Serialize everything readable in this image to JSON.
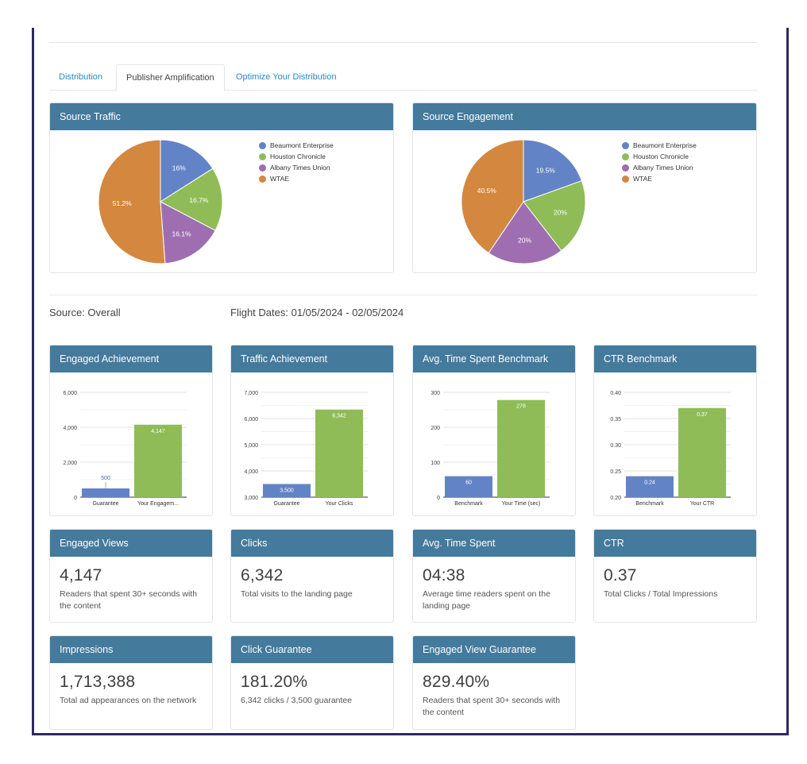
{
  "tabs": [
    {
      "label": "Distribution",
      "active": false
    },
    {
      "label": "Publisher Amplification",
      "active": true
    },
    {
      "label": "Optimize Your Distribution",
      "active": false
    }
  ],
  "colors": {
    "header": "#447a9c",
    "blue": "#6283c5",
    "green": "#8fbc57",
    "purple": "#9e6eb0",
    "orange": "#d4873f",
    "link": "#2b8ac6",
    "frame": "#2e2a5e"
  },
  "source_label": "Source: Overall",
  "flight_dates": "Flight Dates: 01/05/2024 - 02/05/2024",
  "chart_data": [
    {
      "type": "pie",
      "title": "Source Traffic",
      "categories": [
        "Beaumont Enterprise",
        "Houston Chronicle",
        "Albany Times Union",
        "WTAE"
      ],
      "values": [
        16,
        16.7,
        16.1,
        51.2
      ],
      "labels": [
        "16%",
        "16.7%",
        "16.1%",
        "51.2%"
      ],
      "legend": "right"
    },
    {
      "type": "pie",
      "title": "Source Engagement",
      "categories": [
        "Beaumont Enterprise",
        "Houston Chronicle",
        "Albany Times Union",
        "WTAE"
      ],
      "values": [
        19.5,
        20,
        20,
        40.5
      ],
      "labels": [
        "19.5%",
        "20%",
        "20%",
        "40.5%"
      ],
      "legend": "right"
    },
    {
      "type": "bar",
      "title": "Engaged Achievement",
      "categories": [
        "Guarantee",
        "Your Engagem..."
      ],
      "values": [
        500,
        4147
      ],
      "value_labels": [
        "500",
        "4,147"
      ],
      "ylim": [
        0,
        6000
      ],
      "yticks": [
        0,
        2000,
        4000,
        6000
      ],
      "ytick_labels": [
        "0",
        "2,000",
        "4,000",
        "6,000"
      ],
      "grid": true
    },
    {
      "type": "bar",
      "title": "Traffic Achievement",
      "categories": [
        "Guarantee",
        "Your Clicks"
      ],
      "values": [
        3500,
        6342
      ],
      "value_labels": [
        "3,500",
        "6,342"
      ],
      "ylim": [
        3000,
        7000
      ],
      "yticks": [
        3000,
        4000,
        5000,
        6000,
        7000
      ],
      "ytick_labels": [
        "3,000",
        "4,000",
        "5,000",
        "6,000",
        "7,000"
      ],
      "grid": true
    },
    {
      "type": "bar",
      "title": "Avg. Time Spent Benchmark",
      "categories": [
        "Benchmark",
        "Your Time (sec)"
      ],
      "values": [
        60,
        278
      ],
      "value_labels": [
        "60",
        "278"
      ],
      "ylim": [
        0,
        300
      ],
      "yticks": [
        0,
        100,
        200,
        300
      ],
      "ytick_labels": [
        "0",
        "100",
        "200",
        "300"
      ],
      "grid": true
    },
    {
      "type": "bar",
      "title": "CTR Benchmark",
      "categories": [
        "Benchmark",
        "Your CTR"
      ],
      "values": [
        0.24,
        0.37
      ],
      "value_labels": [
        "0.24",
        "0.37"
      ],
      "ylim": [
        0.2,
        0.4
      ],
      "yticks": [
        0.2,
        0.25,
        0.3,
        0.35,
        0.4
      ],
      "ytick_labels": [
        "0.20",
        "0.25",
        "0.30",
        "0.35",
        "0.40"
      ],
      "grid": true
    }
  ],
  "kpis": [
    {
      "title": "Engaged Views",
      "value": "4,147",
      "desc": "Readers that spent 30+ seconds with the content"
    },
    {
      "title": "Clicks",
      "value": "6,342",
      "desc": "Total visits to the landing page"
    },
    {
      "title": "Avg. Time Spent",
      "value": "04:38",
      "desc": "Average time readers spent on the landing page"
    },
    {
      "title": "CTR",
      "value": "0.37",
      "desc": "Total Clicks / Total Impressions"
    },
    {
      "title": "Impressions",
      "value": "1,713,388",
      "desc": "Total ad appearances on the network"
    },
    {
      "title": "Click Guarantee",
      "value": "181.20%",
      "desc": "6,342 clicks / 3,500 guarantee"
    },
    {
      "title": "Engaged View Guarantee",
      "value": "829.40%",
      "desc": "Readers that spent 30+ seconds with the content"
    }
  ]
}
